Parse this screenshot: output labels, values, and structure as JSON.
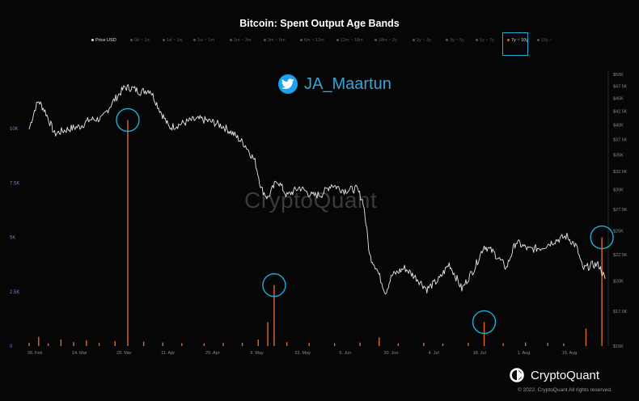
{
  "title": "Bitcoin: Spent Output Age Bands",
  "legend": [
    {
      "label": "Price USD",
      "state": "on-white"
    },
    {
      "label": "0d ~ 1d",
      "state": "off"
    },
    {
      "label": "1d ~ 1w",
      "state": "off"
    },
    {
      "label": "1w ~ 1m",
      "state": "off"
    },
    {
      "label": "1m ~ 3m",
      "state": "off"
    },
    {
      "label": "3m ~ 6m",
      "state": "off"
    },
    {
      "label": "6m ~ 12m",
      "state": "off"
    },
    {
      "label": "12m ~ 18m",
      "state": "off"
    },
    {
      "label": "18m ~ 2y",
      "state": "off"
    },
    {
      "label": "2y ~ 3y",
      "state": "off"
    },
    {
      "label": "3y ~ 5y",
      "state": "off"
    },
    {
      "label": "5y ~ 7y",
      "state": "off"
    },
    {
      "label": "7y ~ 10y",
      "state": "on-orange"
    },
    {
      "label": "10y ~",
      "state": "off"
    }
  ],
  "social_handle": "JA_Maartun",
  "watermark": "CryptoQuant",
  "brand": "CryptoQuant",
  "copyright": "© 2022. CryptoQuant All rights reserved.",
  "colors": {
    "price_line": "#e8e8e8",
    "spent_bars": "#e06a2a",
    "highlight_circles": "#1ab0d8",
    "left_axis_text": "#7d7dc8",
    "background": "#060606"
  },
  "icons": {
    "twitter": "twitter-bird-icon",
    "brand": "cryptoquant-logo-icon"
  },
  "chart_data": {
    "type": "line",
    "x_tick_labels": [
      "28. Feb",
      "14. Mar",
      "28. Mar",
      "11. Apr",
      "25. Apr",
      "9. May",
      "23. May",
      "6. Jun",
      "20. Jun",
      "4. Jul",
      "18. Jul",
      "1. Aug",
      "15. Aug"
    ],
    "left_axis": {
      "ticks": [
        "0",
        "2.5K",
        "5K",
        "7.5K",
        "10K"
      ],
      "ylim": [
        0,
        12500
      ]
    },
    "right_axis": {
      "ticks": [
        "$15K",
        "$17.5K",
        "$20K",
        "$22.5K",
        "$25K",
        "$27.5K",
        "$30K",
        "$32.5K",
        "$35K",
        "$37.5K",
        "$40K",
        "$42.5K",
        "$45K",
        "$47.5K",
        "$50K"
      ],
      "ylim": [
        15000,
        50000
      ],
      "scale": "log"
    },
    "series": [
      {
        "name": "Price USD",
        "axis": "right",
        "points": [
          [
            "2022-02-26",
            39200
          ],
          [
            "2022-02-28",
            43200
          ],
          [
            "2022-03-01",
            44400
          ],
          [
            "2022-03-03",
            42500
          ],
          [
            "2022-03-06",
            38400
          ],
          [
            "2022-03-10",
            39200
          ],
          [
            "2022-03-14",
            39700
          ],
          [
            "2022-03-17",
            40900
          ],
          [
            "2022-03-21",
            41100
          ],
          [
            "2022-03-24",
            44000
          ],
          [
            "2022-03-28",
            47200
          ],
          [
            "2022-03-30",
            47100
          ],
          [
            "2022-04-02",
            46300
          ],
          [
            "2022-04-05",
            46700
          ],
          [
            "2022-04-08",
            42800
          ],
          [
            "2022-04-11",
            39500
          ],
          [
            "2022-04-14",
            40000
          ],
          [
            "2022-04-18",
            40800
          ],
          [
            "2022-04-21",
            41000
          ],
          [
            "2022-04-25",
            40400
          ],
          [
            "2022-04-28",
            39700
          ],
          [
            "2022-05-01",
            38500
          ],
          [
            "2022-05-05",
            36500
          ],
          [
            "2022-05-08",
            34000
          ],
          [
            "2022-05-10",
            30100
          ],
          [
            "2022-05-12",
            28900
          ],
          [
            "2022-05-15",
            31300
          ],
          [
            "2022-05-18",
            29200
          ],
          [
            "2022-05-22",
            30300
          ],
          [
            "2022-05-26",
            29200
          ],
          [
            "2022-05-29",
            29400
          ],
          [
            "2022-06-01",
            30700
          ],
          [
            "2022-06-05",
            29900
          ],
          [
            "2022-06-09",
            30100
          ],
          [
            "2022-06-11",
            28400
          ],
          [
            "2022-06-13",
            22400
          ],
          [
            "2022-06-15",
            21300
          ],
          [
            "2022-06-18",
            19000
          ],
          [
            "2022-06-20",
            20500
          ],
          [
            "2022-06-24",
            21200
          ],
          [
            "2022-06-28",
            20200
          ],
          [
            "2022-07-01",
            19300
          ],
          [
            "2022-07-05",
            20200
          ],
          [
            "2022-07-08",
            21600
          ],
          [
            "2022-07-12",
            19300
          ],
          [
            "2022-07-16",
            21200
          ],
          [
            "2022-07-19",
            23400
          ],
          [
            "2022-07-22",
            22700
          ],
          [
            "2022-07-26",
            21200
          ],
          [
            "2022-07-29",
            23800
          ],
          [
            "2022-08-02",
            23000
          ],
          [
            "2022-08-06",
            23200
          ],
          [
            "2022-08-10",
            23900
          ],
          [
            "2022-08-14",
            24400
          ],
          [
            "2022-08-17",
            23300
          ],
          [
            "2022-08-19",
            21100
          ],
          [
            "2022-08-22",
            21500
          ],
          [
            "2022-08-24",
            21500
          ],
          [
            "2022-08-26",
            20200
          ]
        ]
      },
      {
        "name": "7y ~ 10y",
        "axis": "left",
        "type": "bar",
        "points": [
          [
            "2022-02-26",
            150
          ],
          [
            "2022-03-01",
            420
          ],
          [
            "2022-03-04",
            120
          ],
          [
            "2022-03-08",
            300
          ],
          [
            "2022-03-12",
            180
          ],
          [
            "2022-03-16",
            260
          ],
          [
            "2022-03-20",
            140
          ],
          [
            "2022-03-25",
            220
          ],
          [
            "2022-03-29",
            10400
          ],
          [
            "2022-04-03",
            200
          ],
          [
            "2022-04-09",
            160
          ],
          [
            "2022-04-15",
            130
          ],
          [
            "2022-04-22",
            120
          ],
          [
            "2022-04-28",
            140
          ],
          [
            "2022-05-04",
            150
          ],
          [
            "2022-05-09",
            300
          ],
          [
            "2022-05-12",
            1100
          ],
          [
            "2022-05-14",
            2800
          ],
          [
            "2022-05-18",
            180
          ],
          [
            "2022-05-25",
            140
          ],
          [
            "2022-06-02",
            130
          ],
          [
            "2022-06-10",
            160
          ],
          [
            "2022-06-16",
            400
          ],
          [
            "2022-06-22",
            120
          ],
          [
            "2022-06-30",
            150
          ],
          [
            "2022-07-06",
            110
          ],
          [
            "2022-07-14",
            140
          ],
          [
            "2022-07-19",
            1100
          ],
          [
            "2022-07-25",
            130
          ],
          [
            "2022-08-01",
            170
          ],
          [
            "2022-08-08",
            140
          ],
          [
            "2022-08-13",
            120
          ],
          [
            "2022-08-20",
            800
          ],
          [
            "2022-08-25",
            5000
          ]
        ]
      }
    ],
    "annotations": [
      "circle at 2022-03-29 spike",
      "circle at 2022-05-14 spike",
      "circle at 2022-07-19 spike",
      "circle at 2022-08-25 spike"
    ],
    "grid": false,
    "legend_placement": "top-center"
  }
}
